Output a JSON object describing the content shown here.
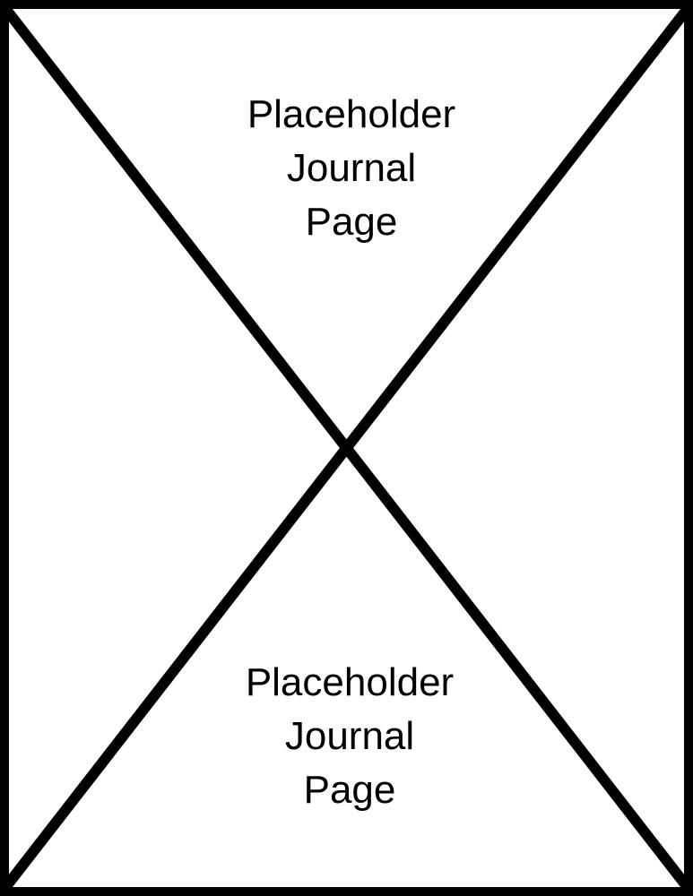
{
  "placeholder": {
    "top_caption": {
      "line1": "Placeholder",
      "line2": "Journal",
      "line3": "Page"
    },
    "bottom_caption": {
      "line1": "Placeholder",
      "line2": "Journal",
      "line3": "Page"
    },
    "colors": {
      "background": "#ffffff",
      "stroke": "#000000"
    }
  }
}
